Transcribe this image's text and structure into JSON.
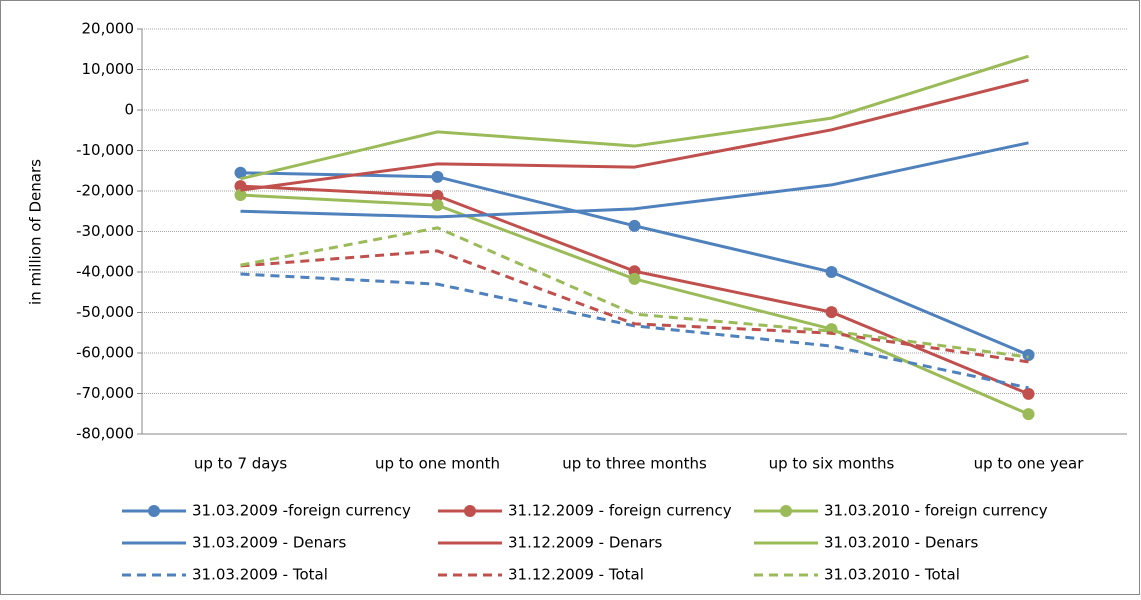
{
  "chart_data": {
    "type": "line",
    "ylabel": "in million of Denars",
    "categories": [
      "up to 7 days",
      "up to one month",
      "up to three months",
      "up to six months",
      "up to one year"
    ],
    "ylim": [
      -80000,
      20000
    ],
    "yticks": [
      {
        "value": -80000,
        "label": "-80,000"
      },
      {
        "value": -70000,
        "label": "-70,000"
      },
      {
        "value": -60000,
        "label": "-60,000"
      },
      {
        "value": -50000,
        "label": "-50,000"
      },
      {
        "value": -40000,
        "label": "-40,000"
      },
      {
        "value": -30000,
        "label": "-30,000"
      },
      {
        "value": -20000,
        "label": "-20,000"
      },
      {
        "value": -10000,
        "label": "-10,000"
      },
      0,
      {
        "value": 10000,
        "label": "10,000"
      },
      {
        "value": 20000,
        "label": "20,000"
      }
    ],
    "grid": true,
    "legend": "bottom",
    "series": [
      {
        "name": "31.03.2009 -foreign currency",
        "color": "#4f81bd",
        "marker": true,
        "dashed": false,
        "values": [
          -15500,
          -16500,
          -28600,
          -40000,
          -60500
        ]
      },
      {
        "name": "31.12.2009 - foreign currency",
        "color": "#c0504d",
        "marker": true,
        "dashed": false,
        "values": [
          -18800,
          -21200,
          -39800,
          -49900,
          -70100
        ]
      },
      {
        "name": "31.03.2010 - foreign currency",
        "color": "#9bbb59",
        "marker": true,
        "dashed": false,
        "values": [
          -21000,
          -23500,
          -41700,
          -54100,
          -75100
        ]
      },
      {
        "name": "31.03.2009 - Denars",
        "color": "#4f81bd",
        "marker": false,
        "dashed": false,
        "values": [
          -25000,
          -26400,
          -24400,
          -18500,
          -8100
        ]
      },
      {
        "name": "31.12.2009 - Denars",
        "color": "#c0504d",
        "marker": false,
        "dashed": false,
        "values": [
          -19800,
          -13300,
          -14100,
          -4900,
          7400
        ]
      },
      {
        "name": "31.03.2010 - Denars",
        "color": "#9bbb59",
        "marker": false,
        "dashed": false,
        "values": [
          -17000,
          -5400,
          -8900,
          -2000,
          13300
        ]
      },
      {
        "name": "31.03.2009 - Total",
        "color": "#4f81bd",
        "marker": false,
        "dashed": true,
        "values": [
          -40500,
          -43000,
          -53300,
          -58300,
          -68600
        ]
      },
      {
        "name": "31.12.2009 - Total",
        "color": "#c0504d",
        "marker": false,
        "dashed": true,
        "values": [
          -38500,
          -34800,
          -52800,
          -55100,
          -62200
        ]
      },
      {
        "name": "31.03.2010 - Total",
        "color": "#9bbb59",
        "marker": false,
        "dashed": true,
        "values": [
          -38300,
          -29100,
          -50400,
          -54600,
          -61000
        ]
      }
    ]
  }
}
